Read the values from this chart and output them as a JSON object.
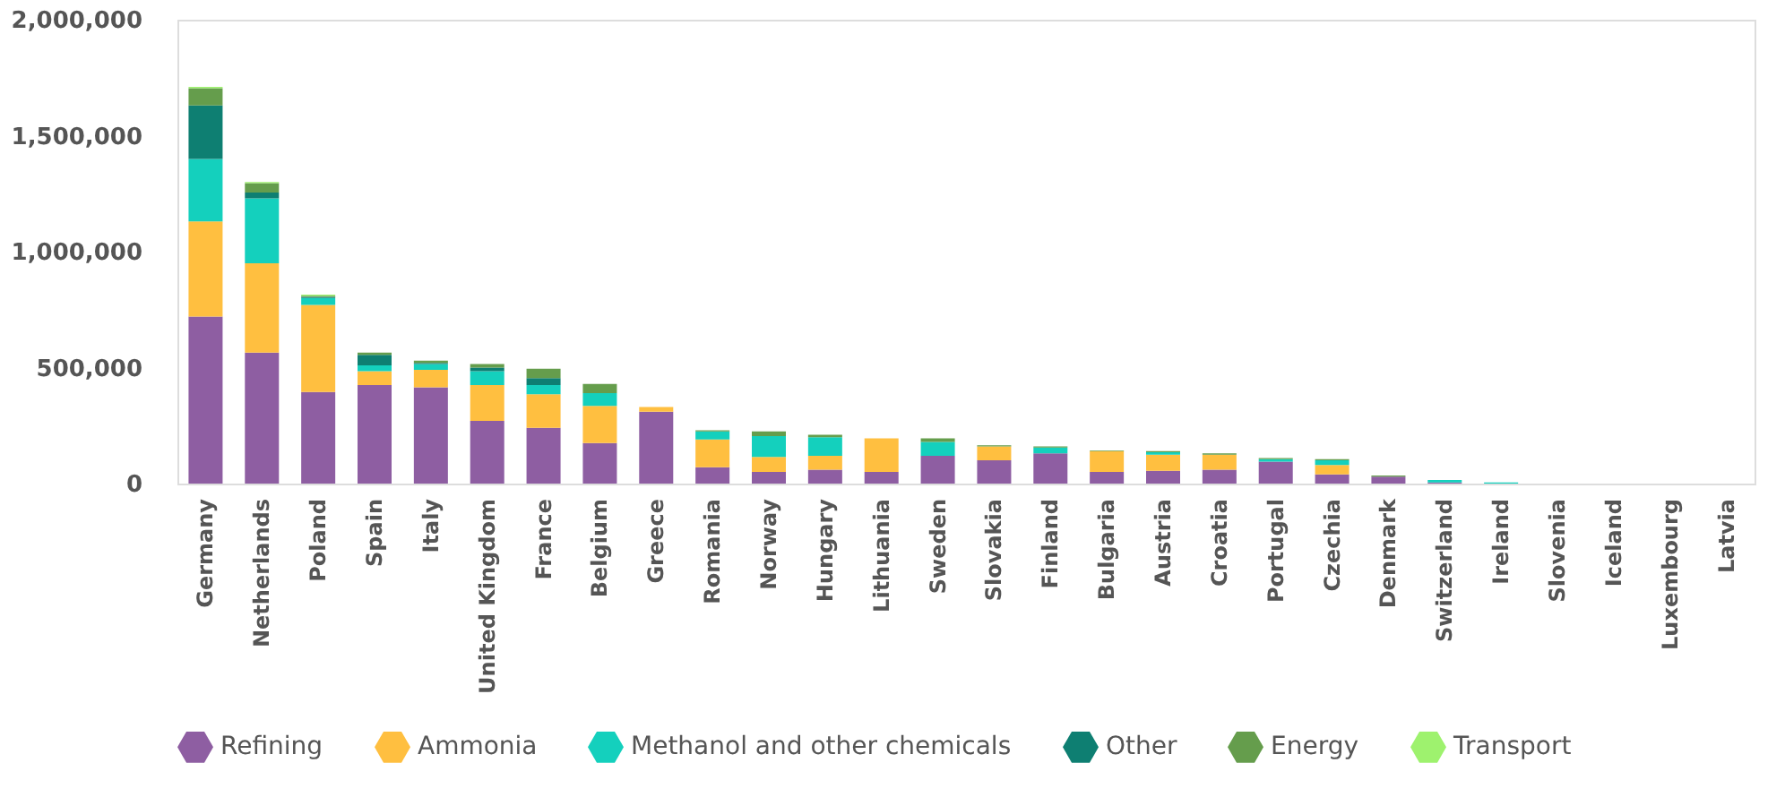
{
  "chart_data": {
    "type": "bar",
    "stacked": true,
    "legend": "bottom",
    "grid": false,
    "categories": [
      "Germany",
      "Netherlands",
      "Poland",
      "Spain",
      "Italy",
      "United Kingdom",
      "France",
      "Belgium",
      "Greece",
      "Romania",
      "Norway",
      "Hungary",
      "Lithuania",
      "Sweden",
      "Slovakia",
      "Finland",
      "Bulgaria",
      "Austria",
      "Croatia",
      "Portugal",
      "Czechia",
      "Denmark",
      "Switzerland",
      "Ireland",
      "Slovenia",
      "Iceland",
      "Luxembourg",
      "Latvia"
    ],
    "ylim": [
      0,
      2000000
    ],
    "yticks": [
      0,
      {
        "value": 500000,
        "label": "500,000"
      },
      {
        "value": 1000000,
        "label": "1,000,000"
      },
      {
        "value": 1500000,
        "label": "1,500,000"
      },
      {
        "value": 2000000,
        "label": "2,000,000"
      }
    ],
    "series": [
      {
        "name": "Refining",
        "color": "#8e5ea2",
        "values": [
          720000,
          565000,
          395000,
          425000,
          415000,
          270000,
          240000,
          175000,
          310000,
          70000,
          50000,
          60000,
          50000,
          120000,
          100000,
          130000,
          50000,
          55000,
          60000,
          95000,
          40000,
          30000,
          5000,
          0,
          0,
          0,
          0,
          0
        ]
      },
      {
        "name": "Ammonia",
        "color": "#ffbf40",
        "values": [
          410000,
          385000,
          375000,
          60000,
          75000,
          155000,
          145000,
          160000,
          20000,
          120000,
          65000,
          60000,
          145000,
          0,
          60000,
          0,
          90000,
          70000,
          65000,
          0,
          40000,
          0,
          0,
          0,
          0,
          0,
          0,
          0
        ]
      },
      {
        "name": "Methanol and other chemicals",
        "color": "#14d0bd",
        "values": [
          270000,
          280000,
          30000,
          25000,
          25000,
          60000,
          40000,
          55000,
          0,
          35000,
          90000,
          80000,
          0,
          60000,
          0,
          25000,
          0,
          10000,
          0,
          10000,
          20000,
          0,
          10000,
          5000,
          0,
          0,
          0,
          0
        ]
      },
      {
        "name": "Other",
        "color": "#0e7f72",
        "values": [
          230000,
          25000,
          5000,
          45000,
          5000,
          15000,
          30000,
          0,
          0,
          0,
          0,
          0,
          0,
          0,
          0,
          0,
          0,
          0,
          0,
          0,
          0,
          0,
          0,
          0,
          0,
          0,
          0,
          0
        ]
      },
      {
        "name": "Energy",
        "color": "#659d4c",
        "values": [
          75000,
          40000,
          5000,
          10000,
          10000,
          15000,
          40000,
          40000,
          0,
          5000,
          20000,
          10000,
          0,
          15000,
          5000,
          5000,
          3000,
          5000,
          5000,
          5000,
          5000,
          5000,
          0,
          0,
          0,
          0,
          0,
          0
        ]
      },
      {
        "name": "Transport",
        "color": "#9ef26e",
        "values": [
          5000,
          5000,
          5000,
          0,
          0,
          0,
          0,
          0,
          0,
          0,
          0,
          0,
          0,
          0,
          0,
          0,
          0,
          0,
          0,
          0,
          0,
          0,
          0,
          0,
          0,
          0,
          0,
          0
        ]
      }
    ]
  }
}
